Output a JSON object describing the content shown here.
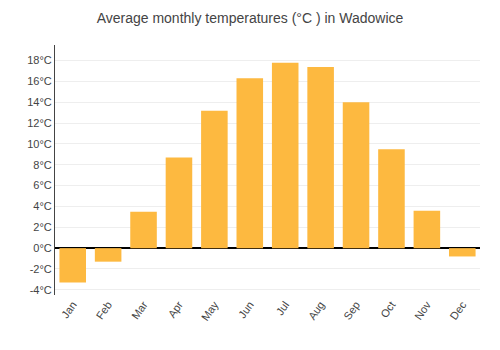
{
  "chart_data": {
    "type": "bar",
    "title": "Average monthly temperatures (°C ) in Wadowice",
    "categories": [
      "Jan",
      "Feb",
      "Mar",
      "Apr",
      "May",
      "Jun",
      "Jul",
      "Aug",
      "Sep",
      "Oct",
      "Nov",
      "Dec"
    ],
    "values": [
      -3.3,
      -1.3,
      3.5,
      8.7,
      13.2,
      16.3,
      17.8,
      17.4,
      14.0,
      9.5,
      3.6,
      -0.8
    ],
    "color": "#FDB940",
    "ylim": [
      -4.5,
      19.5
    ],
    "yticks": [
      {
        "value": -4,
        "label": "-4°C"
      },
      {
        "value": -2,
        "label": "-2°C"
      },
      {
        "value": 0,
        "label": "0°C"
      },
      {
        "value": 2,
        "label": "2°C"
      },
      {
        "value": 4,
        "label": "4°C"
      },
      {
        "value": 6,
        "label": "6°C"
      },
      {
        "value": 8,
        "label": "8°C"
      },
      {
        "value": 10,
        "label": "10°C"
      },
      {
        "value": 12,
        "label": "12°C"
      },
      {
        "value": 14,
        "label": "14°C"
      },
      {
        "value": 16,
        "label": "16°C"
      },
      {
        "value": 18,
        "label": "18°C"
      }
    ],
    "grid": true
  }
}
